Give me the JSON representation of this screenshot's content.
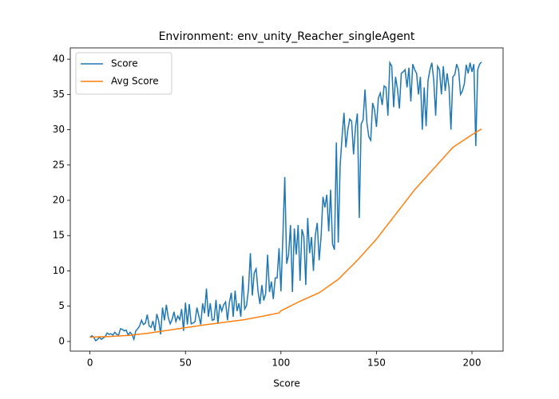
{
  "chart_data": {
    "type": "line",
    "title": "Environment: env_unity_Reacher_singleAgent",
    "x_label": "Score",
    "x": [
      0,
      1,
      2,
      3,
      4,
      5,
      6,
      7,
      8,
      9,
      10,
      11,
      12,
      13,
      14,
      15,
      16,
      17,
      18,
      19,
      20,
      21,
      22,
      23,
      24,
      25,
      26,
      27,
      28,
      29,
      30,
      31,
      32,
      33,
      34,
      35,
      36,
      37,
      38,
      39,
      40,
      41,
      42,
      43,
      44,
      45,
      46,
      47,
      48,
      49,
      50,
      51,
      52,
      53,
      54,
      55,
      56,
      57,
      58,
      59,
      60,
      61,
      62,
      63,
      64,
      65,
      66,
      67,
      68,
      69,
      70,
      71,
      72,
      73,
      74,
      75,
      76,
      77,
      78,
      79,
      80,
      81,
      82,
      83,
      84,
      85,
      86,
      87,
      88,
      89,
      90,
      91,
      92,
      93,
      94,
      95,
      96,
      97,
      98,
      99,
      100,
      101,
      102,
      103,
      104,
      105,
      106,
      107,
      108,
      109,
      110,
      111,
      112,
      113,
      114,
      115,
      116,
      117,
      118,
      119,
      120,
      121,
      122,
      123,
      124,
      125,
      126,
      127,
      128,
      129,
      130,
      131,
      132,
      133,
      134,
      135,
      136,
      137,
      138,
      139,
      140,
      141,
      142,
      143,
      144,
      145,
      146,
      147,
      148,
      149,
      150,
      151,
      152,
      153,
      154,
      155,
      156,
      157,
      158,
      159,
      160,
      161,
      162,
      163,
      164,
      165,
      166,
      167,
      168,
      169,
      170,
      171,
      172,
      173,
      174,
      175,
      176,
      177,
      178,
      179,
      180,
      181,
      182,
      183,
      184,
      185,
      186,
      187,
      188,
      189,
      190,
      191,
      192,
      193,
      194,
      195,
      196,
      197,
      198,
      199,
      200,
      201,
      202,
      203,
      204,
      205
    ],
    "series": [
      {
        "name": "Score",
        "color": "#1f77b4",
        "values": [
          0.6,
          0.8,
          0.6,
          0.1,
          0.3,
          0.6,
          0.3,
          0.5,
          0.7,
          1.2,
          1.0,
          1.1,
          0.9,
          1.3,
          1.0,
          0.9,
          1.8,
          1.7,
          1.5,
          1.6,
          0.9,
          1.3,
          1.0,
          0.3,
          1.5,
          1.8,
          2.2,
          3.0,
          2.4,
          2.6,
          3.8,
          2.2,
          2.0,
          2.9,
          1.5,
          3.9,
          2.9,
          1.0,
          4.8,
          3.0,
          5.2,
          3.4,
          2.5,
          3.1,
          4.2,
          2.8,
          3.6,
          3.1,
          4.6,
          1.5,
          5.5,
          2.4,
          5.3,
          2.5,
          2.6,
          2.8,
          4.8,
          3.6,
          2.4,
          5.4,
          4.0,
          7.5,
          3.5,
          5.4,
          3.0,
          3.1,
          5.9,
          2.5,
          5.3,
          4.3,
          5.2,
          5.6,
          3.0,
          5.5,
          6.9,
          3.5,
          7.2,
          4.3,
          5.4,
          3.5,
          9.3,
          4.6,
          5.1,
          7.4,
          12.5,
          6.5,
          9.7,
          10.3,
          7.1,
          5.3,
          8.0,
          5.8,
          6.8,
          12.3,
          7.0,
          8.5,
          6.0,
          9.0,
          9.0,
          13.2,
          7.1,
          14.8,
          23.3,
          11.0,
          12.3,
          16.5,
          7.0,
          16.0,
          12.3,
          16.5,
          8.6,
          15.9,
          14.8,
          8.0,
          17.5,
          12.5,
          14.8,
          10.0,
          15.1,
          16.8,
          11.5,
          14.8,
          20.5,
          19.0,
          20.8,
          15.6,
          21.5,
          13.8,
          13.0,
          28.2,
          14.0,
          25.0,
          29.0,
          32.4,
          27.5,
          30.0,
          31.5,
          31.2,
          26.5,
          30.3,
          32.3,
          17.5,
          30.8,
          31.4,
          35.7,
          31.0,
          29.0,
          28.5,
          33.8,
          32.8,
          30.4,
          34.5,
          35.2,
          33.5,
          36.2,
          36.0,
          32.0,
          39.5,
          39.0,
          33.2,
          37.5,
          35.8,
          33.0,
          38.0,
          38.2,
          38.5,
          36.0,
          38.8,
          34.0,
          39.3,
          38.5,
          38.0,
          35.0,
          37.5,
          30.0,
          36.0,
          30.5,
          37.0,
          38.5,
          39.5,
          37.0,
          32.0,
          39.0,
          38.5,
          35.0,
          39.0,
          35.5,
          38.0,
          36.0,
          30.0,
          37.5,
          37.8,
          39.3,
          38.5,
          35.0,
          35.5,
          36.5,
          39.2,
          38.0,
          39.5,
          38.2,
          39.3,
          27.7,
          38.5,
          39.3,
          39.6
        ]
      },
      {
        "name": "Avg Score",
        "color": "#ff7f0e",
        "values": [
          0.6,
          0.61,
          0.62,
          0.63,
          0.64,
          0.65,
          0.66,
          0.67,
          0.68,
          0.69,
          0.7,
          0.72,
          0.73,
          0.75,
          0.76,
          0.78,
          0.79,
          0.81,
          0.82,
          0.84,
          0.85,
          0.88,
          0.91,
          0.94,
          0.97,
          1.0,
          1.03,
          1.06,
          1.09,
          1.12,
          1.15,
          1.19,
          1.23,
          1.27,
          1.31,
          1.35,
          1.39,
          1.43,
          1.47,
          1.51,
          1.55,
          1.59,
          1.63,
          1.67,
          1.71,
          1.75,
          1.79,
          1.83,
          1.87,
          1.91,
          1.95,
          1.99,
          2.03,
          2.07,
          2.11,
          2.15,
          2.19,
          2.23,
          2.27,
          2.31,
          2.35,
          2.39,
          2.42,
          2.46,
          2.49,
          2.53,
          2.56,
          2.6,
          2.63,
          2.67,
          2.7,
          2.74,
          2.77,
          2.81,
          2.84,
          2.88,
          2.91,
          2.95,
          2.98,
          3.02,
          3.05,
          3.1,
          3.15,
          3.2,
          3.25,
          3.3,
          3.35,
          3.4,
          3.45,
          3.5,
          3.55,
          3.61,
          3.66,
          3.72,
          3.77,
          3.83,
          3.88,
          3.94,
          3.99,
          4.05,
          4.35,
          4.49,
          4.62,
          4.76,
          4.89,
          5.03,
          5.16,
          5.3,
          5.43,
          5.57,
          5.7,
          5.82,
          5.94,
          6.06,
          6.18,
          6.3,
          6.42,
          6.54,
          6.66,
          6.78,
          6.9,
          7.09,
          7.28,
          7.47,
          7.66,
          7.85,
          8.04,
          8.23,
          8.42,
          8.61,
          8.8,
          9.07,
          9.34,
          9.61,
          9.88,
          10.15,
          10.42,
          10.69,
          10.96,
          11.23,
          11.5,
          11.8,
          12.1,
          12.4,
          12.7,
          13.0,
          13.3,
          13.6,
          13.9,
          14.2,
          14.5,
          14.85,
          15.2,
          15.55,
          15.9,
          16.25,
          16.6,
          16.95,
          17.3,
          17.65,
          18.0,
          18.35,
          18.7,
          19.05,
          19.4,
          19.75,
          20.1,
          20.45,
          20.8,
          21.15,
          21.5,
          21.8,
          22.1,
          22.4,
          22.7,
          23.0,
          23.3,
          23.6,
          23.9,
          24.2,
          24.5,
          24.8,
          25.1,
          25.4,
          25.7,
          26.0,
          26.3,
          26.6,
          26.9,
          27.2,
          27.5,
          27.68,
          27.86,
          28.04,
          28.22,
          28.4,
          28.58,
          28.76,
          28.94,
          29.12,
          29.3,
          29.46,
          29.62,
          29.78,
          29.94,
          30.1
        ]
      }
    ],
    "xlim": [
      -10.3,
      216.3
    ],
    "ylim": [
      -1.37,
      41.6
    ],
    "xticks": [
      0,
      50,
      100,
      150,
      200
    ],
    "yticks": [
      0,
      5,
      10,
      15,
      20,
      25,
      30,
      35,
      40
    ],
    "grid": false,
    "legend_position": "upper left"
  }
}
